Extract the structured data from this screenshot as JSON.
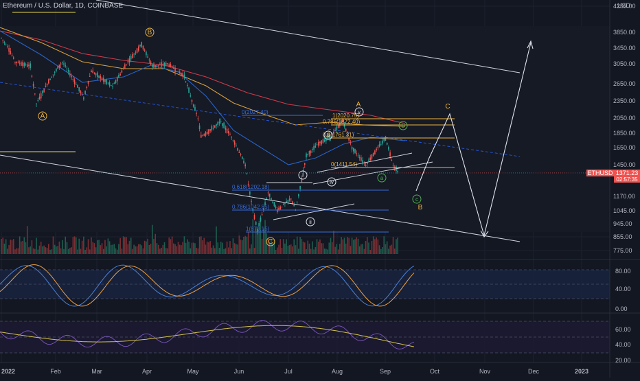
{
  "header": {
    "symbol_title": "Ethereum / U.S. Dollar, 1D, COINBASE",
    "currency": "USD"
  },
  "price_tag": {
    "symbol": "ETHUSD",
    "price": "1371.23",
    "countdown": "02:57:35"
  },
  "colors": {
    "background": "#131722",
    "up": "#26a69a",
    "down": "#ef5350",
    "ma_red": "#d03a4a",
    "ma_orange": "#d9a03c",
    "ma_blue": "#2a63c6",
    "wave_orange": "#f0b43c",
    "wave_white": "#e0e3eb",
    "wave_green": "#4caf50",
    "fib_orange": "#f0b43c",
    "fib_blue": "#3a6cd6",
    "stoch_blue": "#4a7fd6",
    "stoch_orange": "#f0a040",
    "rsi_purple": "#7e57c2",
    "rsi_yellow": "#d4c34a"
  },
  "chart_data": {
    "type": "candlestick",
    "price_axis_ticks": [
      "4250.00",
      "3850.00",
      "3450.00",
      "3050.00",
      "2650.00",
      "2350.00",
      "2050.00",
      "1850.00",
      "1650.00",
      "1450.00",
      "1170.00",
      "1045.00",
      "945.00",
      "855.00",
      "775.00"
    ],
    "stoch_axis_ticks": [
      "80.00",
      "40.00",
      "0.00"
    ],
    "rsi_axis_ticks": [
      "60.00",
      "40.00",
      "20.00"
    ],
    "time_axis_ticks": [
      "2022",
      "Feb",
      "Mar",
      "Apr",
      "May",
      "Jun",
      "Jul",
      "Aug",
      "Sep",
      "Oct",
      "Nov",
      "Dec",
      "2023"
    ],
    "last_price": 1371.23,
    "price_path": [
      [
        "2022-01-01",
        3700
      ],
      [
        "2022-01-05",
        3500
      ],
      [
        "2022-01-10",
        3100
      ],
      [
        "2022-01-20",
        3000
      ],
      [
        "2022-01-24",
        2300
      ],
      [
        "2022-02-01",
        2700
      ],
      [
        "2022-02-10",
        3100
      ],
      [
        "2022-02-20",
        2600
      ],
      [
        "2022-02-24",
        2400
      ],
      [
        "2022-03-01",
        2900
      ],
      [
        "2022-03-15",
        2600
      ],
      [
        "2022-03-25",
        3100
      ],
      [
        "2022-04-03",
        3550
      ],
      [
        "2022-04-10",
        3000
      ],
      [
        "2022-04-20",
        3050
      ],
      [
        "2022-05-01",
        2800
      ],
      [
        "2022-05-10",
        2050
      ],
      [
        "2022-05-12",
        1800
      ],
      [
        "2022-05-25",
        2000
      ],
      [
        "2022-06-01",
        1800
      ],
      [
        "2022-06-10",
        1450
      ],
      [
        "2022-06-15",
        1050
      ],
      [
        "2022-06-18",
        900
      ],
      [
        "2022-06-25",
        1200
      ],
      [
        "2022-07-01",
        1050
      ],
      [
        "2022-07-10",
        1150
      ],
      [
        "2022-07-13",
        1050
      ],
      [
        "2022-07-20",
        1550
      ],
      [
        "2022-07-28",
        1700
      ],
      [
        "2022-08-05",
        1800
      ],
      [
        "2022-08-13",
        2020
      ],
      [
        "2022-08-19",
        1650
      ],
      [
        "2022-08-28",
        1450
      ],
      [
        "2022-09-07",
        1700
      ],
      [
        "2022-09-10",
        1780
      ],
      [
        "2022-09-15",
        1450
      ],
      [
        "2022-09-19",
        1371
      ]
    ],
    "annotations": {
      "orange_waves": [
        "A",
        "B",
        "C",
        "A",
        "B",
        "C"
      ],
      "white_waves": [
        "i",
        "ii",
        "iii",
        "iv",
        "v"
      ],
      "green_waves": [
        "a",
        "b",
        "c"
      ],
      "fib_labels": [
        "0(2027.40)",
        "1(2020.75)",
        "0.786(1872.40)",
        "0.5(1761.31)",
        "0(1411.54)",
        "0.618(1202.18)",
        "0.786(1042.85)",
        "1(879.15)"
      ]
    }
  }
}
